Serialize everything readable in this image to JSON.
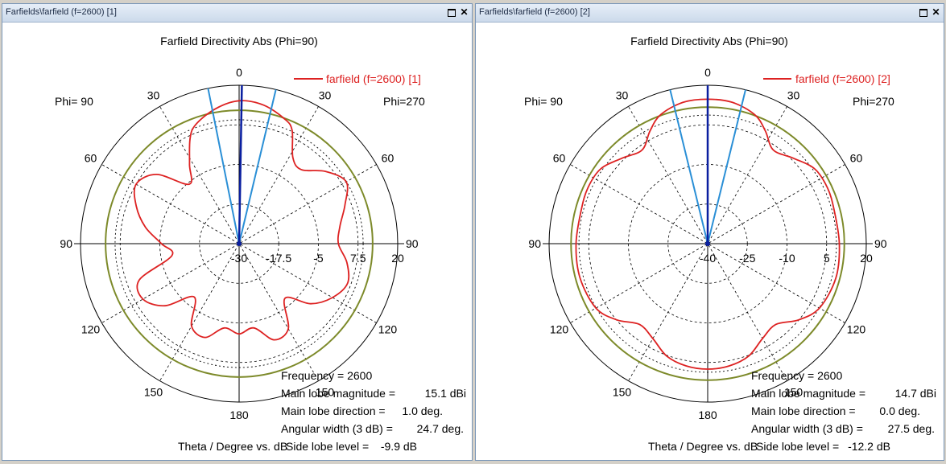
{
  "windows": [
    {
      "title": "Farfields\\farfield (f=2600) [1]",
      "chart_data": {
        "type": "polar",
        "title": "Farfield Directivity Abs (Phi=90)",
        "legend": "farfield (f=2600) [1]",
        "phi_left": "Phi= 90",
        "phi_right": "Phi=270",
        "xlabel": "Theta / Degree vs. dB",
        "angle_labels": [
          "0",
          "30",
          "60",
          "90",
          "120",
          "150",
          "180",
          "150",
          "120",
          "90",
          "60",
          "30"
        ],
        "radial_range": [
          -30,
          20
        ],
        "radial_ticks": [
          "-30",
          "-17.5",
          "-5",
          "7.5",
          "20"
        ],
        "radial_tick_values": [
          -30,
          -17.5,
          -5,
          7.5,
          20
        ],
        "ring_values": [
          -17.5,
          -5,
          7.5
        ],
        "level_circle": 12.1,
        "level_circle_dashed": 9.1,
        "beam_direction_deg": 1.0,
        "beamwidth_lines_deg": [
          -11.3,
          13.4
        ],
        "pattern_theta_deg": [
          0,
          10,
          20,
          25,
          32,
          40,
          50,
          60,
          70,
          80,
          90,
          100,
          110,
          120,
          130,
          140,
          150,
          160,
          170,
          180,
          190,
          200,
          210,
          220,
          230,
          240,
          250,
          260,
          270,
          280,
          290,
          300,
          310,
          320,
          328,
          335,
          340,
          350
        ],
        "pattern_db": [
          15.1,
          14.4,
          11.9,
          9.5,
          2.0,
          0.5,
          5.5,
          9.0,
          5.5,
          2.3,
          1.3,
          4.5,
          6.4,
          4.0,
          -0.5,
          -7.5,
          1.0,
          2.3,
          -3.0,
          -1.5,
          -3.0,
          1.5,
          0.0,
          -8.0,
          0.5,
          5.0,
          3.5,
          -8.5,
          -5.5,
          0.0,
          4.5,
          7.5,
          4.0,
          -5.5,
          -0.5,
          6.6,
          10.0,
          13.2
        ],
        "info": {
          "frequency": "Frequency = 2600",
          "main_lobe_magnitude_label": "Main lobe magnitude =",
          "main_lobe_magnitude_value": "15.1 dBi",
          "main_lobe_direction_label": "Main lobe direction =",
          "main_lobe_direction_value": "1.0 deg.",
          "angular_width_label": "Angular width (3 dB) =",
          "angular_width_value": "24.7 deg.",
          "side_lobe_label": "Side lobe level =",
          "side_lobe_value": "-9.9 dB"
        }
      }
    },
    {
      "title": "Farfields\\farfield (f=2600) [2]",
      "chart_data": {
        "type": "polar",
        "title": "Farfield Directivity Abs (Phi=90)",
        "legend": "farfield (f=2600) [2]",
        "phi_left": "Phi= 90",
        "phi_right": "Phi=270",
        "xlabel": "Theta / Degree vs. dB",
        "angle_labels": [
          "0",
          "30",
          "60",
          "90",
          "120",
          "150",
          "180",
          "150",
          "120",
          "90",
          "60",
          "30"
        ],
        "radial_range": [
          -40,
          20
        ],
        "radial_ticks": [
          "-40",
          "-25",
          "-10",
          "5",
          "20"
        ],
        "radial_tick_values": [
          -40,
          -25,
          -10,
          5,
          20
        ],
        "ring_values": [
          -25,
          -10,
          5
        ],
        "level_circle": 11.7,
        "level_circle_dashed": 8.7,
        "beam_direction_deg": 0.0,
        "beamwidth_lines_deg": [
          -13.7,
          13.8
        ],
        "pattern_theta_deg": [
          0,
          10,
          20,
          27,
          35,
          45,
          55,
          65,
          75,
          90,
          105,
          120,
          130,
          140,
          150,
          160,
          170,
          180,
          190,
          200,
          210,
          220,
          230,
          240,
          255,
          270,
          285,
          295,
          305,
          315,
          325,
          333,
          340,
          350
        ],
        "pattern_db": [
          14.7,
          14.3,
          12.0,
          8.0,
          3.3,
          5.8,
          9.4,
          10.0,
          9.5,
          9.8,
          10.2,
          8.8,
          4.9,
          0.0,
          1.5,
          5.3,
          7.0,
          7.5,
          7.0,
          5.3,
          1.5,
          0.0,
          4.9,
          8.8,
          10.0,
          9.8,
          9.5,
          10.0,
          9.4,
          5.8,
          3.3,
          8.0,
          12.0,
          14.3
        ],
        "info": {
          "frequency": "Frequency = 2600",
          "main_lobe_magnitude_label": "Main lobe magnitude =",
          "main_lobe_magnitude_value": "14.7 dBi",
          "main_lobe_direction_label": "Main lobe direction =",
          "main_lobe_direction_value": "0.0 deg.",
          "angular_width_label": "Angular width (3 dB) =",
          "angular_width_value": "27.5 deg.",
          "side_lobe_label": "Side lobe level =",
          "side_lobe_value": "-12.2 dB"
        }
      }
    }
  ],
  "colors": {
    "pattern": "#dd2222",
    "level_circle": "#7d8a2a",
    "main_lobe": "#0a1fa0",
    "beamwidth": "#2a8fd6",
    "grid": "#000000"
  }
}
